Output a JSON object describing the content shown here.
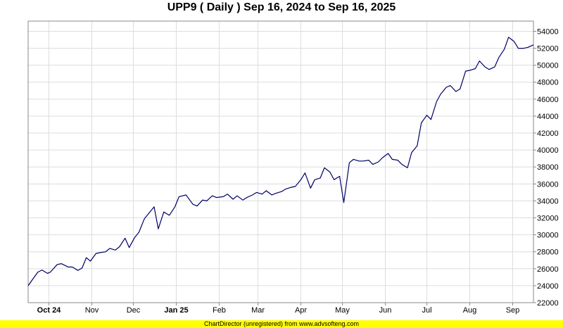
{
  "chart_data": {
    "type": "line",
    "title": "UPP9 ( Daily ) Sep 16, 2024 to Sep 16, 2025",
    "x_tick_labels": [
      "Oct 24",
      "Nov",
      "Dec",
      "Jan 25",
      "Feb",
      "Mar",
      "Apr",
      "May",
      "Jun",
      "Jul",
      "Aug",
      "Sep"
    ],
    "x_tick_bold": [
      true,
      false,
      false,
      true,
      false,
      false,
      false,
      false,
      false,
      false,
      false,
      false
    ],
    "y_tick_labels": [
      "22000",
      "24000",
      "26000",
      "28000",
      "30000",
      "32000",
      "34000",
      "36000",
      "38000",
      "40000",
      "42000",
      "44000",
      "46000",
      "48000",
      "50000",
      "52000",
      "54000"
    ],
    "ylim": [
      22000,
      55200
    ],
    "x": [
      "2024-09-16",
      "2024-09-19",
      "2024-09-23",
      "2024-09-26",
      "2024-09-30",
      "2024-10-02",
      "2024-10-07",
      "2024-10-10",
      "2024-10-15",
      "2024-10-18",
      "2024-10-22",
      "2024-10-25",
      "2024-10-28",
      "2024-10-31",
      "2024-11-04",
      "2024-11-07",
      "2024-11-11",
      "2024-11-14",
      "2024-11-18",
      "2024-11-21",
      "2024-11-25",
      "2024-11-28",
      "2024-12-02",
      "2024-12-05",
      "2024-12-09",
      "2024-12-12",
      "2024-12-16",
      "2024-12-19",
      "2024-12-23",
      "2024-12-27",
      "2024-12-31",
      "2025-01-03",
      "2025-01-08",
      "2025-01-13",
      "2025-01-16",
      "2025-01-20",
      "2025-01-23",
      "2025-01-27",
      "2025-01-30",
      "2025-02-04",
      "2025-02-07",
      "2025-02-11",
      "2025-02-14",
      "2025-02-18",
      "2025-02-21",
      "2025-02-25",
      "2025-02-28",
      "2025-03-04",
      "2025-03-07",
      "2025-03-11",
      "2025-03-14",
      "2025-03-18",
      "2025-03-21",
      "2025-03-25",
      "2025-03-28",
      "2025-04-01",
      "2025-04-04",
      "2025-04-08",
      "2025-04-11",
      "2025-04-15",
      "2025-04-18",
      "2025-04-22",
      "2025-04-25",
      "2025-04-29",
      "2025-05-02",
      "2025-05-06",
      "2025-05-09",
      "2025-05-13",
      "2025-05-16",
      "2025-05-20",
      "2025-05-23",
      "2025-05-27",
      "2025-05-30",
      "2025-06-03",
      "2025-06-06",
      "2025-06-10",
      "2025-06-13",
      "2025-06-17",
      "2025-06-20",
      "2025-06-24",
      "2025-06-27",
      "2025-07-01",
      "2025-07-04",
      "2025-07-08",
      "2025-07-11",
      "2025-07-15",
      "2025-07-18",
      "2025-07-22",
      "2025-07-25",
      "2025-07-29",
      "2025-08-01",
      "2025-08-05",
      "2025-08-08",
      "2025-08-12",
      "2025-08-15",
      "2025-08-19",
      "2025-08-22",
      "2025-08-26",
      "2025-08-29",
      "2025-09-02",
      "2025-09-05",
      "2025-09-09",
      "2025-09-12",
      "2025-09-16"
    ],
    "series": [
      {
        "color": "#000066",
        "values": [
          24000,
          24700,
          25600,
          25850,
          25450,
          25600,
          26500,
          26600,
          26200,
          26200,
          25800,
          26100,
          27300,
          26900,
          27800,
          27900,
          28000,
          28400,
          28200,
          28600,
          29600,
          28500,
          29700,
          30300,
          31900,
          32500,
          33300,
          30700,
          32700,
          32300,
          33300,
          34500,
          34700,
          33600,
          33400,
          34100,
          34000,
          34600,
          34400,
          34500,
          34800,
          34200,
          34600,
          34100,
          34400,
          34700,
          35000,
          34800,
          35200,
          34700,
          34900,
          35100,
          35400,
          35600,
          35700,
          36500,
          37300,
          35500,
          36500,
          36700,
          37900,
          37400,
          36500,
          36900,
          33800,
          38500,
          38900,
          38700,
          38700,
          38800,
          38300,
          38600,
          39100,
          39600,
          38900,
          38800,
          38300,
          37900,
          39700,
          40500,
          43200,
          44100,
          43600,
          45700,
          46600,
          47400,
          47600,
          46900,
          47200,
          49300,
          49400,
          49600,
          50500,
          49800,
          49500,
          49800,
          50900,
          51900,
          53300,
          52800,
          52000,
          52000,
          52100,
          52400
        ]
      }
    ],
    "grid": true
  },
  "footer_text": "ChartDirector (unregistered) from www.advsofteng.com"
}
